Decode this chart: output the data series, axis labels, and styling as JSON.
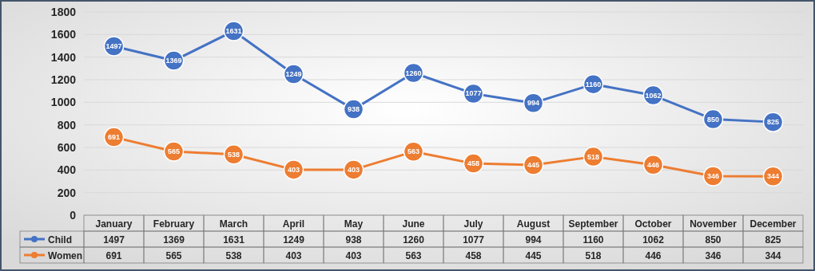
{
  "chart_data": {
    "type": "line",
    "categories": [
      "January",
      "February",
      "March",
      "April",
      "May",
      "June",
      "July",
      "August",
      "September",
      "October",
      "November",
      "December"
    ],
    "series": [
      {
        "name": "Child",
        "color": "#4472c4",
        "values": [
          1497,
          1369,
          1631,
          1249,
          938,
          1260,
          1077,
          994,
          1160,
          1062,
          850,
          825
        ]
      },
      {
        "name": "Women",
        "color": "#ed7d31",
        "values": [
          691,
          565,
          538,
          403,
          403,
          563,
          458,
          445,
          518,
          446,
          346,
          344
        ]
      }
    ],
    "annotations": [
      {
        "text": "1497",
        "x": "January",
        "y": 1497
      },
      {
        "text": "1369",
        "x": "February",
        "y": 1369
      },
      {
        "text": "1631",
        "x": "March",
        "y": 1631
      },
      {
        "text": "1249",
        "x": "April",
        "y": 1249
      },
      {
        "text": "938",
        "x": "May",
        "y": 938
      },
      {
        "text": "1260",
        "x": "June",
        "y": 1260
      },
      {
        "text": "1077",
        "x": "July",
        "y": 1077
      },
      {
        "text": "994",
        "x": "August",
        "y": 994
      },
      {
        "text": "1160",
        "x": "September",
        "y": 1160
      },
      {
        "text": "1062",
        "x": "October",
        "y": 1062
      },
      {
        "text": "850",
        "x": "November",
        "y": 850
      },
      {
        "text": "825",
        "x": "December",
        "y": 825
      },
      {
        "text": "691",
        "x": "January",
        "y": 691
      },
      {
        "text": "565",
        "x": "February",
        "y": 565
      },
      {
        "text": "538",
        "x": "March",
        "y": 538
      },
      {
        "text": "403",
        "x": "April",
        "y": 403
      },
      {
        "text": "403",
        "x": "May",
        "y": 403
      },
      {
        "text": "563",
        "x": "June",
        "y": 563
      },
      {
        "text": "458",
        "x": "July",
        "y": 458
      },
      {
        "text": "445",
        "x": "August",
        "y": 445
      },
      {
        "text": "518",
        "x": "September",
        "y": 518
      },
      {
        "text": "446",
        "x": "October",
        "y": 446
      },
      {
        "text": "346",
        "x": "November",
        "y": 346
      },
      {
        "text": "344",
        "x": "December",
        "y": 344
      }
    ],
    "ylim": [
      0,
      1800
    ],
    "yticks": [
      0,
      200,
      400,
      600,
      800,
      1000,
      1200,
      1400,
      1600,
      1800
    ],
    "grid": "y",
    "marker": "circle",
    "line_style": "solid",
    "data_labels": true,
    "legend": "bottom"
  }
}
